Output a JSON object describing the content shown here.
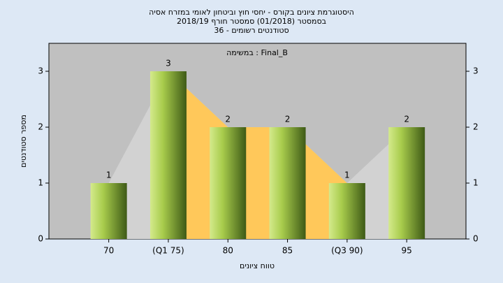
{
  "chart_data": {
    "type": "bar",
    "title": "היסטוגרמת ציונים בקורס - יחסי חוץ וביטחון לאומי במזרח אסיה",
    "subtitle": "בסמסטר (01/2018) סמסטר חורף 2018/19",
    "subtitle2": "סטודנטים רשומים - 36",
    "annotation": "במשימה : Final_B",
    "x_label": "טווח ציונים",
    "y_label": "מספר סטודנטים",
    "categories": [
      "70",
      "(Q1 75)",
      "80",
      "85",
      "(Q3 90)",
      "95"
    ],
    "values": [
      1,
      3,
      2,
      2,
      1,
      2
    ],
    "ylim": [
      0,
      3.5
    ],
    "yticks": [
      0,
      1,
      2,
      3
    ]
  }
}
